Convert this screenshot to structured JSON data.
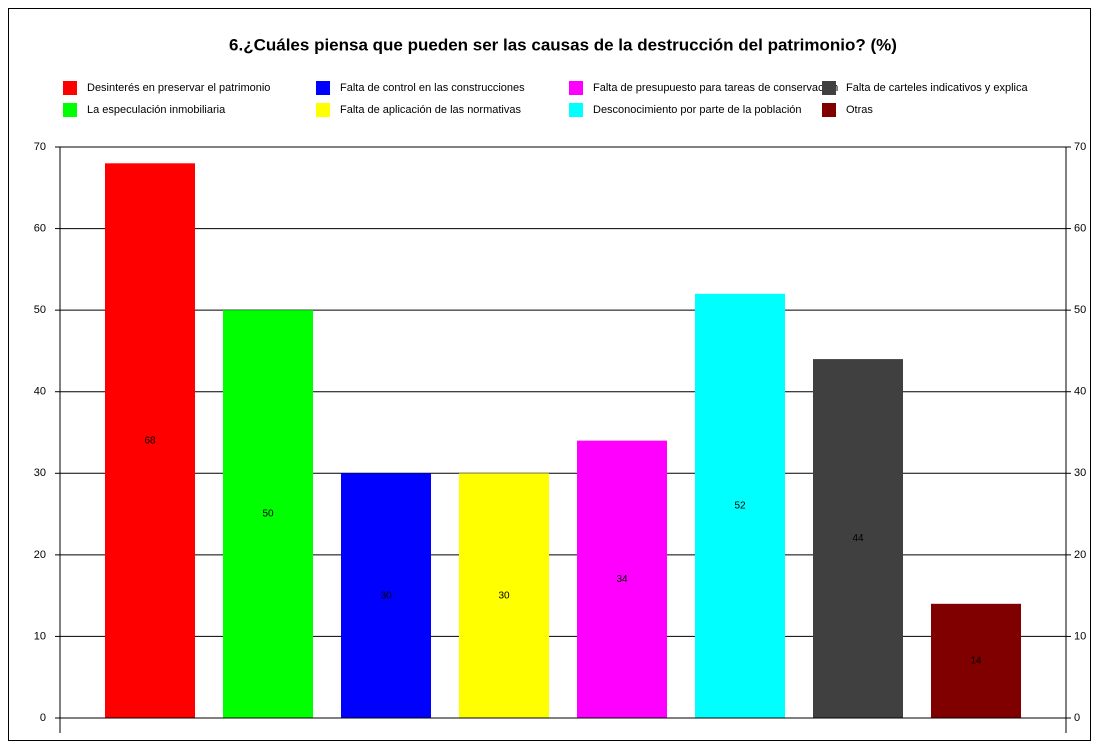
{
  "chart_data": {
    "type": "bar",
    "title": "6.¿Cuáles piensa que pueden ser las causas de la destrucción del patrimonio? (%)",
    "categories": [
      null
    ],
    "series": [
      {
        "name": "Desinterés en preservar el patrimonio",
        "color": "#ff0000",
        "values": [
          68
        ]
      },
      {
        "name": "La especulación inmobiliaria",
        "color": "#00ff00",
        "values": [
          50
        ]
      },
      {
        "name": "Falta de control en las construcciones",
        "color": "#0000ff",
        "values": [
          30
        ]
      },
      {
        "name": "Falta de aplicación de las normativas",
        "color": "#ffff00",
        "values": [
          30
        ]
      },
      {
        "name": "Falta de presupuesto para tareas de conservación",
        "color": "#ff00ff",
        "values": [
          34
        ]
      },
      {
        "name": "Desconocimiento por parte de la población",
        "color": "#00ffff",
        "values": [
          52
        ]
      },
      {
        "name": "Falta de carteles indicativos y explica",
        "color": "#404040",
        "values": [
          44
        ]
      },
      {
        "name": "Otras",
        "color": "#800000",
        "values": [
          14
        ]
      }
    ],
    "ylim": [
      0,
      70
    ],
    "yticks": [
      0,
      10,
      20,
      30,
      40,
      50,
      60,
      70
    ],
    "y2lim": [
      0,
      70
    ],
    "y2ticks": [
      0,
      10,
      20,
      30,
      40,
      50,
      60,
      70
    ],
    "grid": true,
    "legend": "top"
  }
}
